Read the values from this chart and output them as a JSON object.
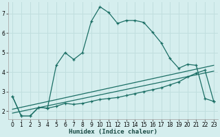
{
  "xlabel": "Humidex (Indice chaleur)",
  "background_color": "#d5eeee",
  "grid_color": "#c0dede",
  "line_color": "#1a6e64",
  "xlim": [
    -0.5,
    23.5
  ],
  "ylim": [
    1.6,
    7.6
  ],
  "yticks": [
    2,
    3,
    4,
    5,
    6,
    7
  ],
  "xticks": [
    0,
    1,
    2,
    3,
    4,
    5,
    6,
    7,
    8,
    9,
    10,
    11,
    12,
    13,
    14,
    15,
    16,
    17,
    18,
    19,
    20,
    21,
    22,
    23
  ],
  "curve_upper_x": [
    0,
    1,
    2,
    3,
    4,
    5,
    6,
    7,
    8,
    9,
    10,
    11,
    12,
    13,
    14,
    15,
    16,
    17,
    18,
    19,
    20,
    21,
    22,
    23
  ],
  "curve_upper_y": [
    2.75,
    1.75,
    1.75,
    2.2,
    2.15,
    4.35,
    5.0,
    4.65,
    5.0,
    6.6,
    7.35,
    7.05,
    6.5,
    6.65,
    6.65,
    6.55,
    6.05,
    5.5,
    4.7,
    4.2,
    4.4,
    4.35,
    2.65,
    2.5
  ],
  "curve_lower_x": [
    0,
    1,
    2,
    3,
    4,
    5,
    6,
    7,
    8,
    9,
    10,
    11,
    12,
    13,
    14,
    15,
    16,
    17,
    18,
    19,
    20,
    21,
    22,
    23
  ],
  "curve_lower_y": [
    2.75,
    1.75,
    1.75,
    2.2,
    2.15,
    2.25,
    2.4,
    2.35,
    2.4,
    2.5,
    2.6,
    2.65,
    2.7,
    2.8,
    2.9,
    3.0,
    3.1,
    3.2,
    3.35,
    3.5,
    3.75,
    3.95,
    4.1,
    2.5
  ],
  "line1_x": [
    0,
    23
  ],
  "line1_y": [
    1.9,
    4.05
  ],
  "line2_x": [
    0,
    23
  ],
  "line2_y": [
    2.1,
    4.35
  ]
}
